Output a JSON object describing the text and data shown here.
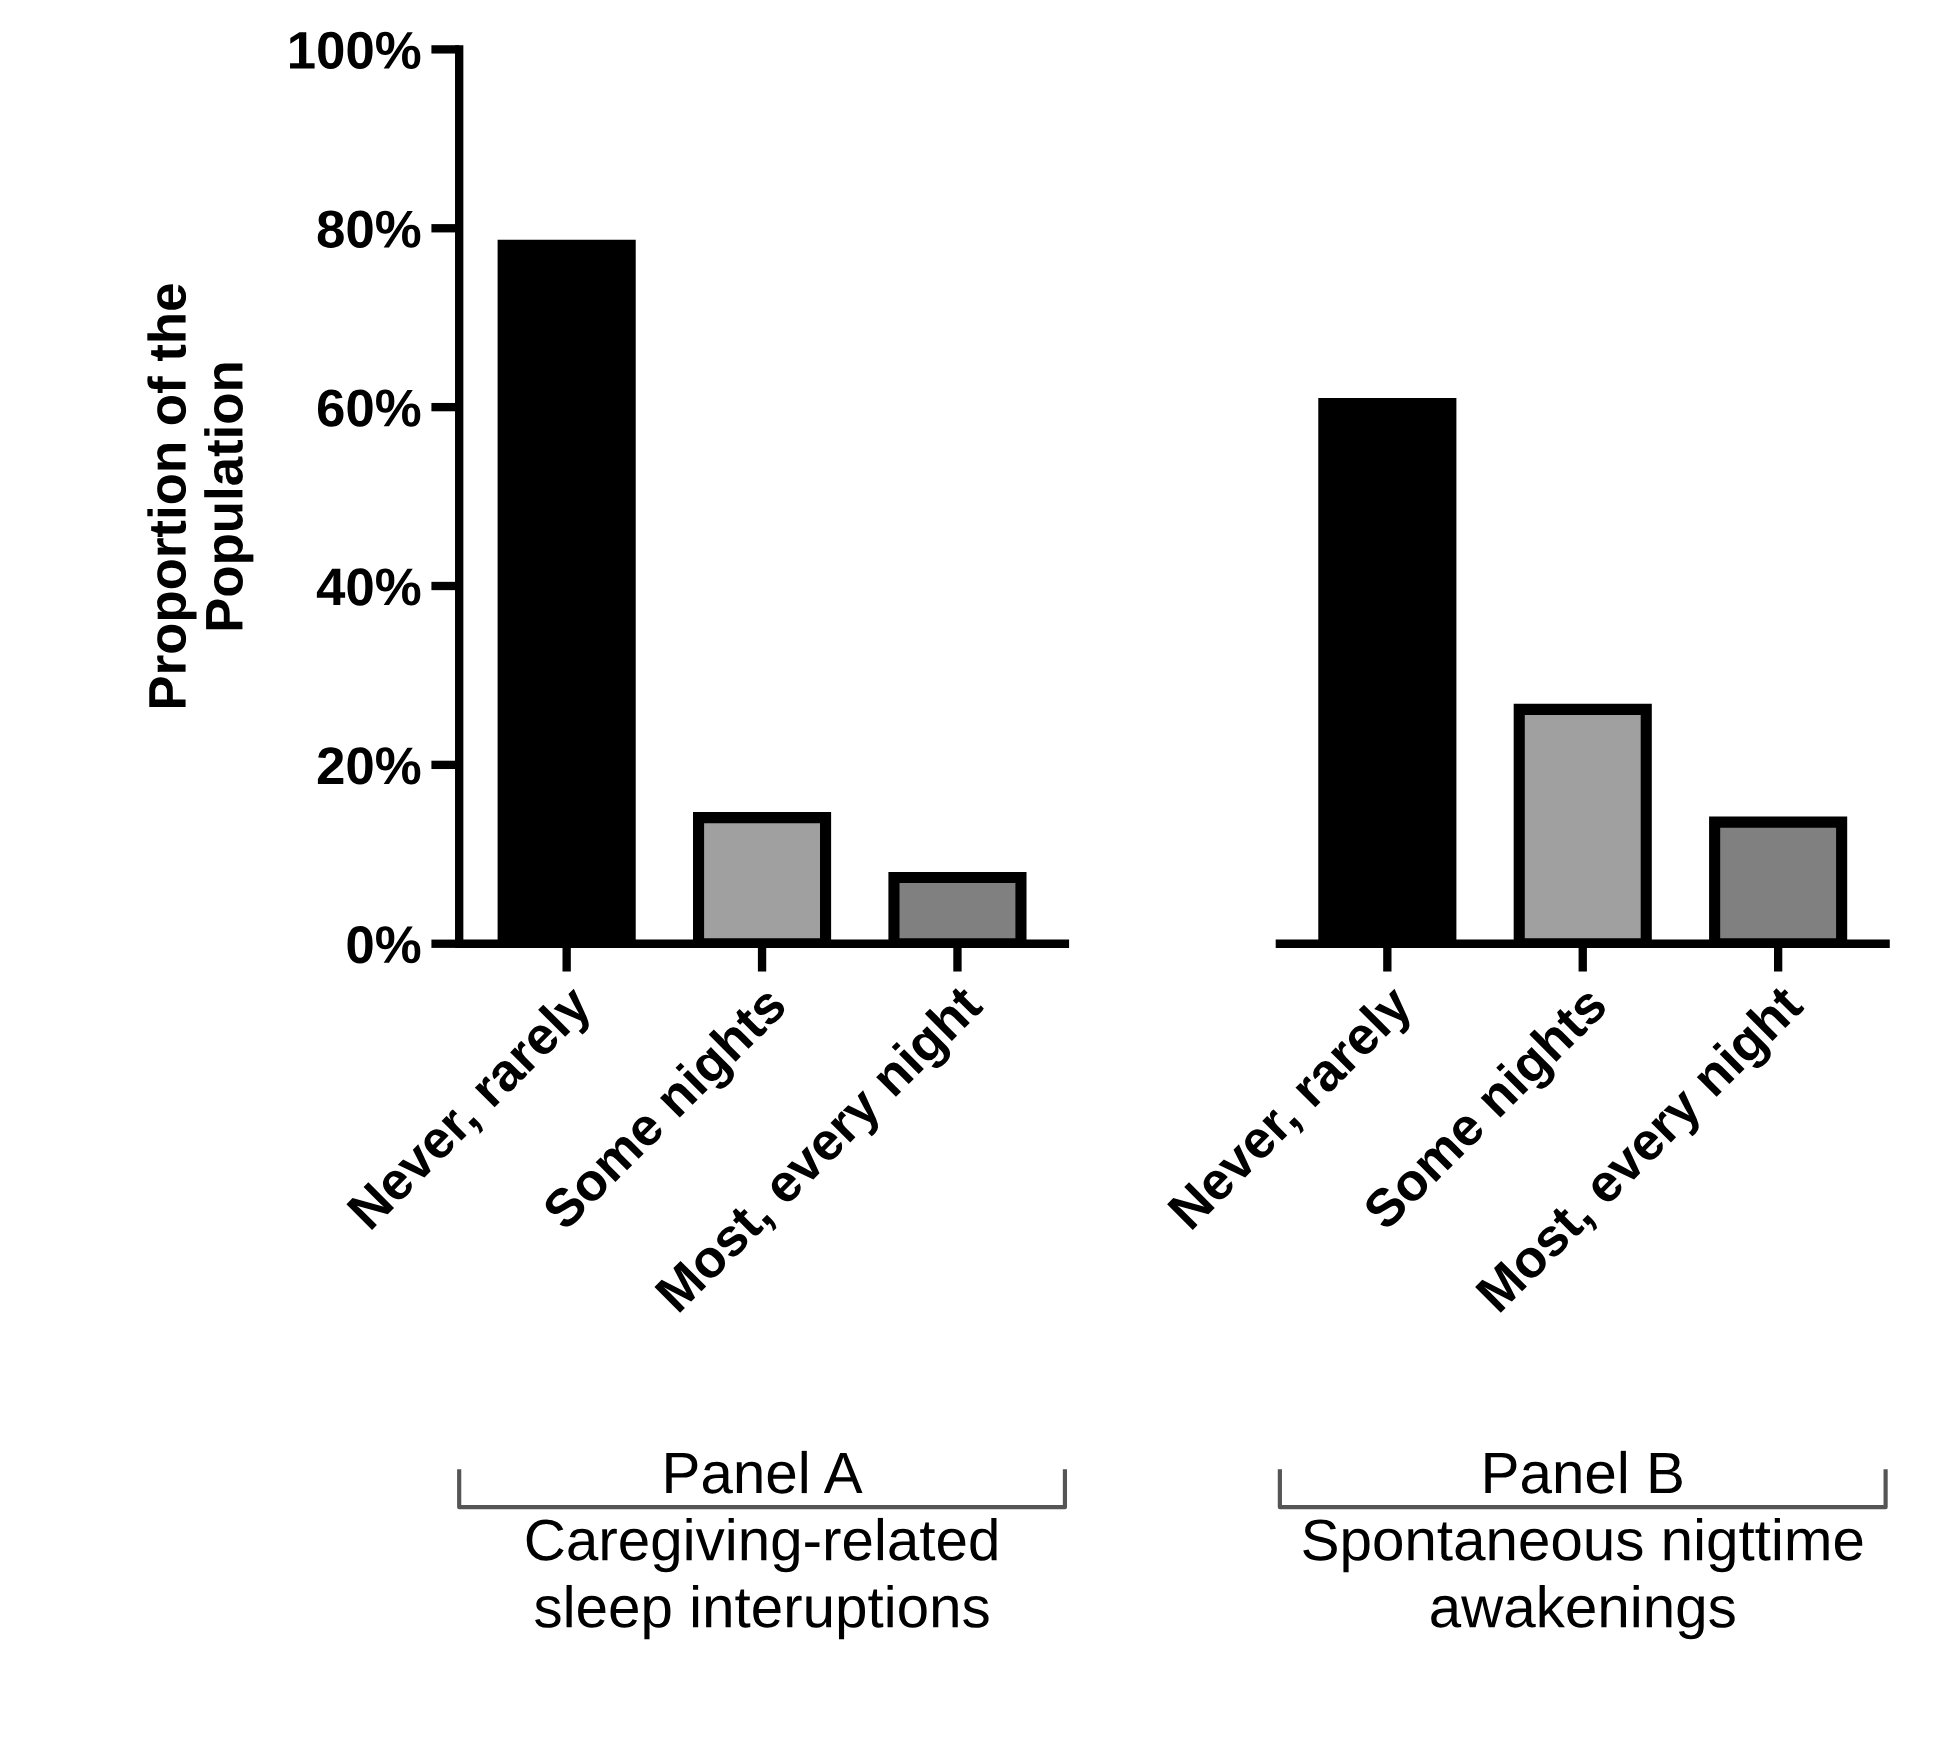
{
  "chart_data": [
    {
      "type": "bar",
      "categories": [
        "Never, rarely",
        "Some nights",
        "Most, every night"
      ],
      "values": [
        78.1,
        14.1,
        7.4
      ],
      "colors": [
        "#000000",
        "#a0a0a0",
        "#808080"
      ],
      "ylabel": "Proportion of the\nPopulation",
      "xlabel": "Panel A\nCaregiving-related\nsleep interuptions",
      "ylim": [
        0,
        100
      ],
      "yticks": [
        {
          "value": 0,
          "label": "0%"
        },
        {
          "value": 20,
          "label": "20%"
        },
        {
          "value": 40,
          "label": "40%"
        },
        {
          "value": 60,
          "label": "60%"
        },
        {
          "value": 80,
          "label": "80%"
        },
        {
          "value": 100,
          "label": "100%"
        }
      ],
      "grid": false,
      "legend": false
    },
    {
      "type": "bar",
      "categories": [
        "Never, rarely",
        "Some nights",
        "Most, every night"
      ],
      "values": [
        60.4,
        26.2,
        13.6
      ],
      "colors": [
        "#000000",
        "#a0a0a0",
        "#808080"
      ],
      "xlabel": "Panel B\nSpontaneous nigttime\nawakenings",
      "ylim": [
        0,
        100
      ],
      "tick_labels": "x",
      "grid": false,
      "legend": false
    }
  ]
}
